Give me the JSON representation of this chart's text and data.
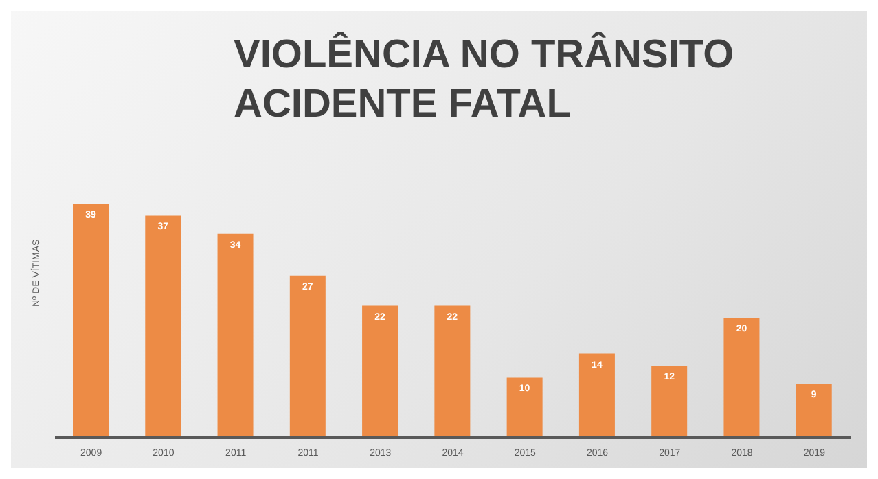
{
  "chart_data": {
    "type": "bar",
    "title": "VIOLÊNCIA NO TRÂNSITO\nACIDENTE FATAL",
    "ylabel": "Nº DE VÍTIMAS",
    "categories": [
      "2009",
      "2010",
      "2011",
      "2011",
      "2013",
      "2014",
      "2015",
      "2016",
      "2017",
      "2018",
      "2019"
    ],
    "values": [
      39,
      37,
      34,
      27,
      22,
      22,
      10,
      14,
      12,
      20,
      9
    ],
    "color": "#ed8b45",
    "data_labels": true
  }
}
